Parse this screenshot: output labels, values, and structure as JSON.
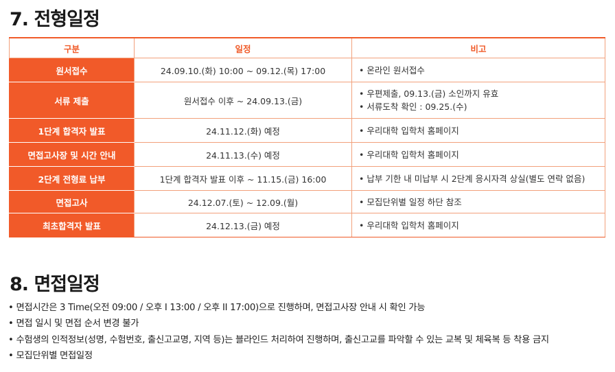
{
  "section7": {
    "title": "7. 전형일정",
    "headers": [
      "구분",
      "일정",
      "비고"
    ],
    "rows": [
      {
        "label": "원서접수",
        "date": "24.09.10.(화) 10:00 ~ 09.12.(목) 17:00",
        "notes": [
          "• 온라인 원서접수"
        ]
      },
      {
        "label": "서류 제출",
        "date": "원서접수 이후 ~ 24.09.13.(금)",
        "notes": [
          "• 우편제출, 09.13.(금) 소인까지 유효",
          "• 서류도착 확인 : 09.25.(수)"
        ]
      },
      {
        "label": "1단계 합격자 발표",
        "date": "24.11.12.(화) 예정",
        "notes": [
          "• 우리대학 입학처 홈페이지"
        ]
      },
      {
        "label": "면접고사장 및 시간 안내",
        "date": "24.11.13.(수) 예정",
        "notes": [
          "• 우리대학 입학처 홈페이지"
        ]
      },
      {
        "label": "2단계 전형료 납부",
        "date": "1단계 합격자 발표 이후 ~ 11.15.(금) 16:00",
        "notes": [
          "• 납부 기한 내 미납부 시 2단계 응시자격 상실(별도 연락 없음)"
        ]
      },
      {
        "label": "면접고사",
        "date": "24.12.07.(토) ~ 12.09.(월)",
        "notes": [
          "• 모집단위별 일정 하단 참조"
        ]
      },
      {
        "label": "최초합격자 발표",
        "date": "24.12.13.(금) 예정",
        "notes": [
          "• 우리대학 입학처 홈페이지"
        ]
      }
    ]
  },
  "section8": {
    "title": "8. 면접일정",
    "items": [
      "• 면접시간은 3 Time(오전 09:00 / 오후 I 13:00 / 오후 II 17:00)으로 진행하며, 면접고사장 안내 시 확인 가능",
      "• 면접 일시 및 면접 순서 변경 불가",
      "• 수험생의 인적정보(성명, 수험번호, 출신고교명, 지역 등)는 블라인드 처리하여 진행하며, 출신고교를 파악할 수 있는 교복 및 체육복 등 착용 금지",
      "• 모집단위별 면접일정"
    ]
  },
  "colors": {
    "accent": "#f15a29",
    "border": "#f2a07b",
    "text": "#222222"
  }
}
